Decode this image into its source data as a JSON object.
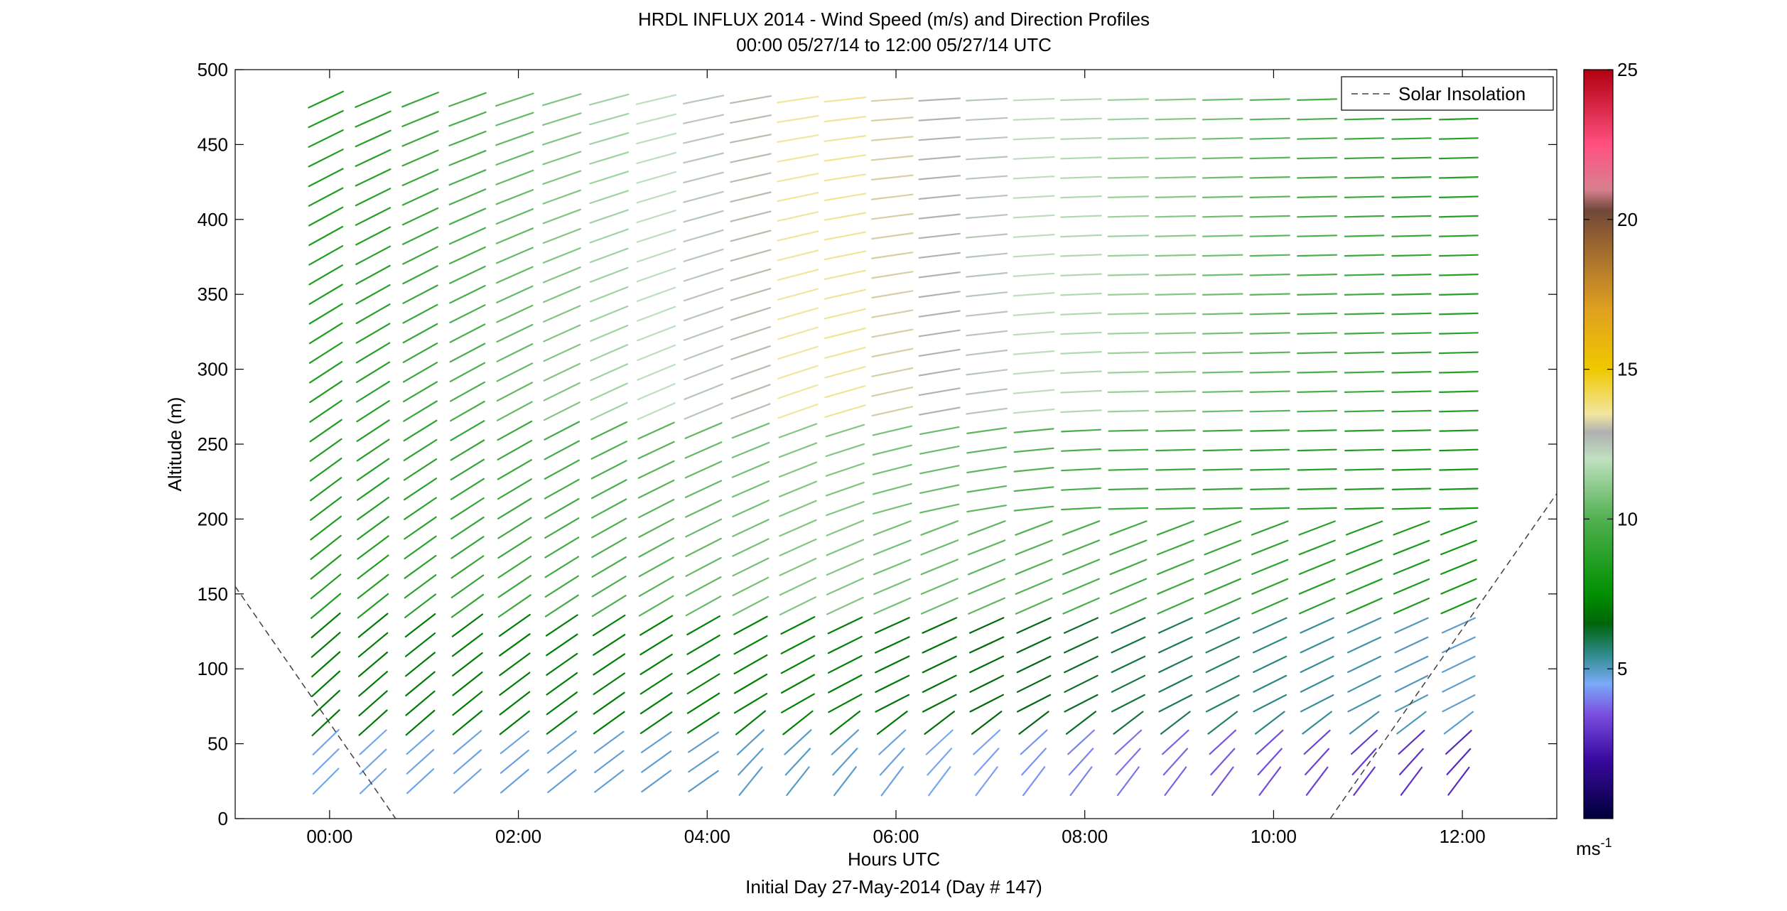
{
  "chart_data": {
    "type": "wind-barb-profile",
    "title": "HRDL INFLUX 2014 - Wind Speed (m/s) and Direction Profiles",
    "subtitle": "00:00 05/27/14 to 12:00 05/27/14  UTC",
    "xlabel": "Hours UTC",
    "xlabel2": "Initial Day 27-May-2014 (Day # 147)",
    "ylabel": "Altitude (m)",
    "xlim_hours": [
      -1.0,
      13.0
    ],
    "ylim": [
      0,
      500
    ],
    "x_ticks": [
      {
        "hour": 0,
        "label": "00:00"
      },
      {
        "hour": 2,
        "label": "02:00"
      },
      {
        "hour": 4,
        "label": "04:00"
      },
      {
        "hour": 6,
        "label": "06:00"
      },
      {
        "hour": 8,
        "label": "08:00"
      },
      {
        "hour": 10,
        "label": "10:00"
      },
      {
        "hour": 12,
        "label": "12:00"
      }
    ],
    "y_ticks": [
      0,
      50,
      100,
      150,
      200,
      250,
      300,
      350,
      400,
      450,
      500
    ],
    "legend": {
      "position": "top-right",
      "entries": [
        {
          "label": "Solar Insolation",
          "style": "dashed",
          "color": "#404040"
        }
      ]
    },
    "colorbar": {
      "range": [
        0,
        25
      ],
      "ticks": [
        5,
        10,
        15,
        20,
        25
      ],
      "unit": "ms",
      "unit_exponent": "-1",
      "stops": [
        {
          "v": 0.0,
          "color": "#00003a"
        },
        {
          "v": 2.0,
          "color": "#3a0aa0"
        },
        {
          "v": 3.5,
          "color": "#7a50e0"
        },
        {
          "v": 4.5,
          "color": "#7aaaf8"
        },
        {
          "v": 5.5,
          "color": "#2e8a8a"
        },
        {
          "v": 6.5,
          "color": "#00640a"
        },
        {
          "v": 7.5,
          "color": "#009000"
        },
        {
          "v": 10.0,
          "color": "#50b050"
        },
        {
          "v": 12.0,
          "color": "#c0e0c0"
        },
        {
          "v": 12.9,
          "color": "#b0b0b0"
        },
        {
          "v": 13.5,
          "color": "#f2e6a0"
        },
        {
          "v": 15.0,
          "color": "#f0c800"
        },
        {
          "v": 17.0,
          "color": "#e0a020"
        },
        {
          "v": 19.0,
          "color": "#a06a30"
        },
        {
          "v": 20.3,
          "color": "#704838"
        },
        {
          "v": 21.0,
          "color": "#d88090"
        },
        {
          "v": 22.5,
          "color": "#ff5080"
        },
        {
          "v": 25.0,
          "color": "#b00010"
        }
      ]
    },
    "solar_insolation": {
      "morning": [
        [
          -1.0,
          155
        ],
        [
          0.7,
          0
        ]
      ],
      "evening": [
        [
          10.6,
          0
        ],
        [
          13.0,
          217
        ]
      ]
    },
    "barb_grid": {
      "times": [
        -0.25,
        0.25,
        0.75,
        1.25,
        1.75,
        2.25,
        2.75,
        3.25,
        3.75,
        4.25,
        4.75,
        5.25,
        5.75,
        6.25,
        6.75,
        7.25,
        7.75,
        8.25,
        8.75,
        9.25,
        9.75,
        10.25,
        10.75,
        11.25,
        11.75
      ],
      "altitudes": [
        25,
        38,
        51,
        64,
        77,
        90,
        103,
        116,
        129,
        142,
        155,
        168,
        181,
        194,
        207,
        220,
        233,
        246,
        259,
        272,
        285,
        298,
        311,
        324,
        337,
        350,
        363,
        376,
        389,
        402,
        415,
        428,
        441,
        454,
        467,
        480
      ],
      "speed_by_altitude_band": [
        {
          "top": 60,
          "speed_early": 4.6,
          "speed_mid": 5.0,
          "speed_late": 2.6
        },
        {
          "top": 140,
          "speed_early": 7.0,
          "speed_mid": 7.2,
          "speed_late": 4.8
        },
        {
          "top": 260,
          "speed_early": 8.5,
          "speed_mid": 11.0,
          "speed_late": 8.0
        },
        {
          "top": 480,
          "speed_early": 8.5,
          "speed_mid": 13.8,
          "speed_late": 8.5
        }
      ],
      "direction_note": "barbs point toward the northeast early and turn to near-horizontal (westerly) later in the period"
    }
  }
}
